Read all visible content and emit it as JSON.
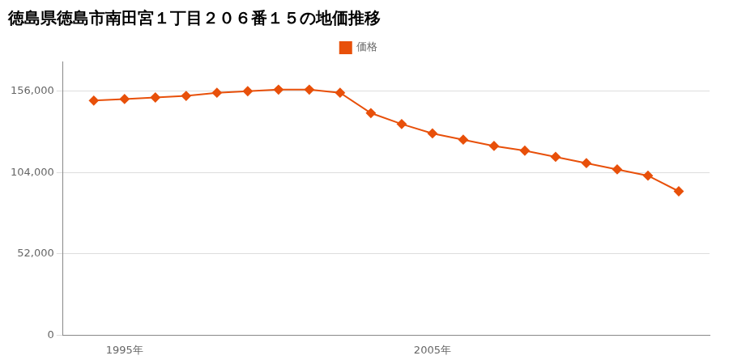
{
  "chart_data": {
    "type": "line",
    "title": "徳島県徳島市南田宮１丁目２０６番１５の地価推移",
    "x": [
      1994,
      1995,
      1996,
      1997,
      1998,
      1999,
      2000,
      2001,
      2002,
      2003,
      2004,
      2005,
      2006,
      2007,
      2008,
      2009,
      2010,
      2011,
      2012,
      2013
    ],
    "series": [
      {
        "name": "価格",
        "color": "#e8500a",
        "marker": "diamond",
        "values": [
          150000,
          151000,
          152000,
          153000,
          155000,
          156000,
          157000,
          157000,
          155000,
          142000,
          135000,
          129000,
          125000,
          121000,
          118000,
          114000,
          110000,
          106000,
          102000,
          92000
        ]
      }
    ],
    "xlim": [
      1993.0,
      2014.0
    ],
    "xticks": [
      {
        "value": 1995,
        "label": "1995年"
      },
      {
        "value": 2005,
        "label": "2005年"
      }
    ],
    "ylim": [
      0,
      175000
    ],
    "yticks": [
      0,
      {
        "value": 52000,
        "label": "52,000"
      },
      {
        "value": 104000,
        "label": "104,000"
      },
      {
        "value": 156000,
        "label": "156,000"
      }
    ],
    "grid": true,
    "legend": "top"
  }
}
